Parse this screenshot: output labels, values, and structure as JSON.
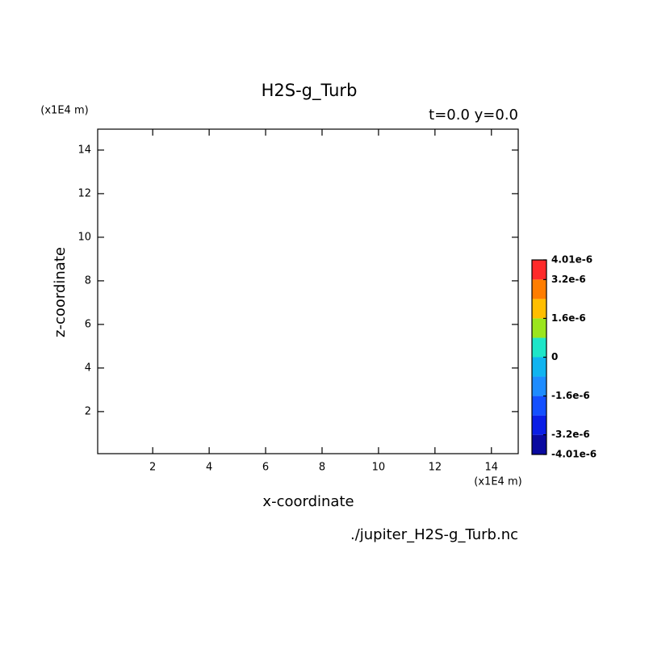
{
  "chart_data": {
    "type": "contour",
    "title": "H2S-g_Turb",
    "subtitle": "t=0.0 y=0.0",
    "xlabel": "x-coordinate",
    "ylabel": "z-coordinate",
    "x_unit": "(x1E4 m)",
    "y_unit": "(x1E4 m)",
    "source": "./jupiter_H2S-g_Turb.nc",
    "xlim": [
      0.05,
      14.95
    ],
    "ylim": [
      0.07,
      14.96
    ],
    "xticks": [
      2,
      4,
      6,
      8,
      10,
      12,
      14
    ],
    "yticks": [
      2,
      4,
      6,
      8,
      10,
      12,
      14
    ],
    "colorbar": {
      "levels": [
        -4.01e-06,
        -3.2e-06,
        -2.4e-06,
        -1.6e-06,
        -8e-07,
        0,
        8e-07,
        1.6e-06,
        2.4e-06,
        3.2e-06,
        4.01e-06
      ],
      "colors": [
        "#0a0aa0",
        "#0a1ee6",
        "#1450ff",
        "#1e8cff",
        "#10b4f0",
        "#1ee6c8",
        "#9be61e",
        "#ffbe00",
        "#ff7d00",
        "#ff2a2a",
        "#ff5050"
      ],
      "ticks": [
        {
          "value": 4.01e-06,
          "label": "4.01e-6"
        },
        {
          "value": 3.2e-06,
          "label": "3.2e-6"
        },
        {
          "value": 1.6e-06,
          "label": "1.6e-6"
        },
        {
          "value": 0,
          "label": "0"
        },
        {
          "value": -1.6e-06,
          "label": "-1.6e-6"
        },
        {
          "value": -3.2e-06,
          "label": "-3.2e-6"
        },
        {
          "value": -4.01e-06,
          "label": "-4.01e-6"
        }
      ]
    }
  }
}
